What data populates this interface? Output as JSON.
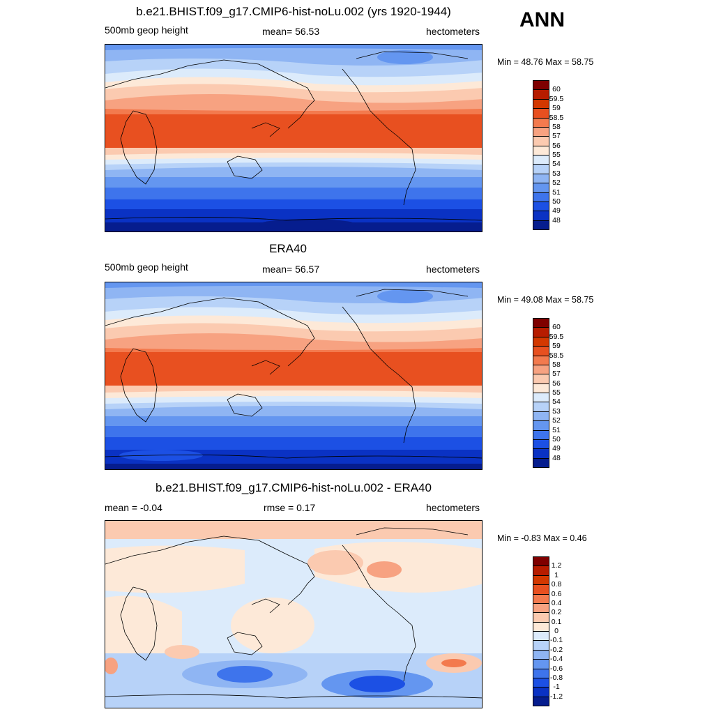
{
  "season": "ANN",
  "panels": [
    {
      "title": "b.e21.BHIST.f09_g17.CMIP6-hist-noLu.002 (yrs 1920-1944)",
      "left_label": "500mb geop height",
      "center_label": "mean=  56.53",
      "right_label": "hectometers",
      "minmax": "Min =  48.76 Max =  58.75",
      "colorbar": {
        "colors": [
          "#7f0000",
          "#b71c00",
          "#d33800",
          "#e85020",
          "#f37a4e",
          "#f7a281",
          "#fbcab0",
          "#fde9d8",
          "#dcebfb",
          "#b7d2f8",
          "#8fb5f3",
          "#6496f0",
          "#3e74ec",
          "#1c50e4",
          "#0a32c4",
          "#061d8e"
        ],
        "labels": [
          "60",
          "59.5",
          "59",
          "58.5",
          "58",
          "57",
          "56",
          "55",
          "54",
          "53",
          "52",
          "51",
          "50",
          "49",
          "48"
        ]
      }
    },
    {
      "title": "ERA40",
      "left_label": "500mb geop height",
      "center_label": "mean=  56.57",
      "right_label": "hectometers",
      "minmax": "Min =  49.08 Max =  58.75",
      "colorbar": {
        "colors": [
          "#7f0000",
          "#b71c00",
          "#d33800",
          "#e85020",
          "#f37a4e",
          "#f7a281",
          "#fbcab0",
          "#fde9d8",
          "#dcebfb",
          "#b7d2f8",
          "#8fb5f3",
          "#6496f0",
          "#3e74ec",
          "#1c50e4",
          "#0a32c4",
          "#061d8e"
        ],
        "labels": [
          "60",
          "59.5",
          "59",
          "58.5",
          "58",
          "57",
          "56",
          "55",
          "54",
          "53",
          "52",
          "51",
          "50",
          "49",
          "48"
        ]
      }
    },
    {
      "title": "b.e21.BHIST.f09_g17.CMIP6-hist-noLu.002 - ERA40",
      "left_label": "mean =  -0.04",
      "center_label": "rmse =   0.17",
      "right_label": "hectometers",
      "minmax": "Min =  -0.83 Max =   0.46",
      "colorbar": {
        "colors": [
          "#7f0000",
          "#b71c00",
          "#d33800",
          "#e85020",
          "#f37a4e",
          "#f7a281",
          "#fbcab0",
          "#fde9d8",
          "#dcebfb",
          "#b7d2f8",
          "#8fb5f3",
          "#6496f0",
          "#3e74ec",
          "#1c50e4",
          "#0a32c4",
          "#061d8e"
        ],
        "labels": [
          "1.2",
          "1",
          "0.8",
          "0.6",
          "0.4",
          "0.2",
          "0.1",
          "0",
          "-0.1",
          "-0.2",
          "-0.4",
          "-0.6",
          "-0.8",
          "-1",
          "-1.2"
        ]
      }
    }
  ]
}
